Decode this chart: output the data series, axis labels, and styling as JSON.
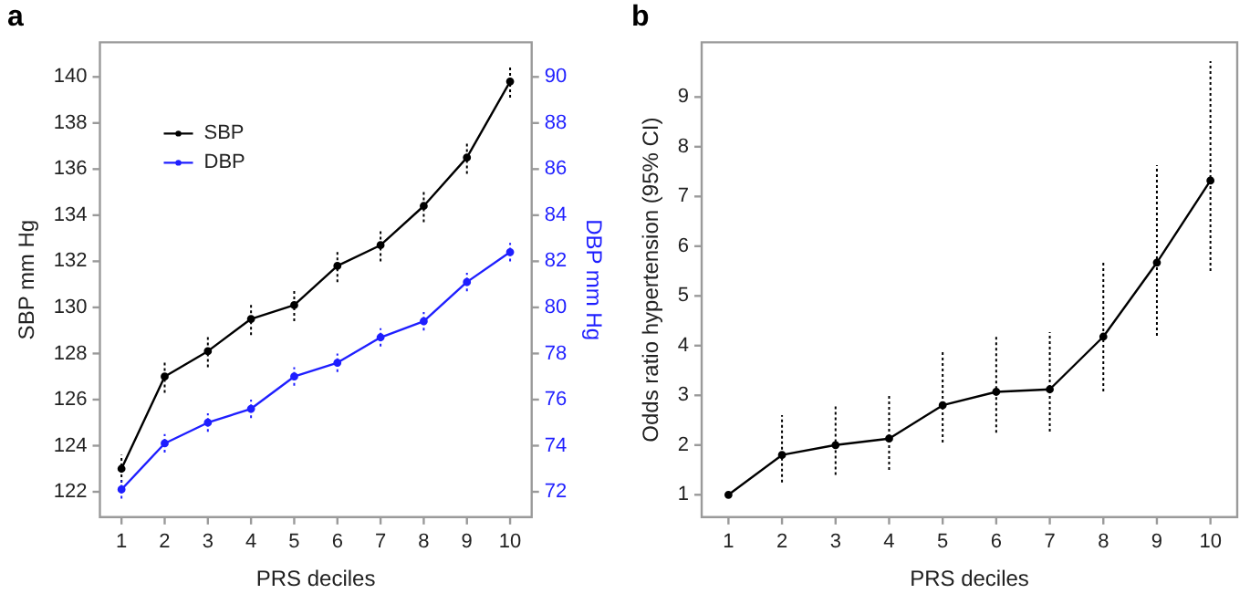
{
  "chart_data": [
    {
      "type": "line",
      "title": "a",
      "xlabel": "PRS deciles",
      "ylabel": "SBP mm Hg",
      "y2label": "DBP mm Hg",
      "categories": [
        "1",
        "2",
        "3",
        "4",
        "5",
        "6",
        "7",
        "8",
        "9",
        "10"
      ],
      "series": [
        {
          "name": "SBP",
          "color": "#000000",
          "values": [
            123.0,
            127.0,
            128.1,
            129.5,
            130.1,
            131.8,
            132.7,
            134.4,
            136.5,
            139.8
          ],
          "errors": [
            0.6,
            0.7,
            0.7,
            0.7,
            0.7,
            0.7,
            0.7,
            0.7,
            0.7,
            0.7
          ]
        },
        {
          "name": "DBP",
          "color": "#1f1fff",
          "axis": "y2",
          "values": [
            72.1,
            74.1,
            75.0,
            75.6,
            77.0,
            77.6,
            78.7,
            79.4,
            81.1,
            82.4
          ],
          "errors": [
            0.4,
            0.4,
            0.4,
            0.4,
            0.4,
            0.4,
            0.4,
            0.4,
            0.4,
            0.4
          ]
        }
      ],
      "ylim": [
        120.9,
        141.5
      ],
      "yticks": [
        122,
        124,
        126,
        128,
        130,
        132,
        134,
        136,
        138,
        140
      ],
      "y2lim": [
        70.9,
        91.5
      ],
      "y2ticks": [
        72,
        74,
        76,
        78,
        80,
        82,
        84,
        86,
        88,
        90
      ],
      "legend": "top left",
      "marker": "circle",
      "line_style": "solid",
      "grid": false
    },
    {
      "type": "line",
      "title": "b",
      "xlabel": "PRS deciles",
      "ylabel": "Odds ratio hypertension (95% CI)",
      "categories": [
        "1",
        "2",
        "3",
        "4",
        "5",
        "6",
        "7",
        "8",
        "9",
        "10"
      ],
      "series": [
        {
          "color": "#000000",
          "values": [
            1,
            1.8,
            2.0,
            2.13,
            2.8,
            3.07,
            3.12,
            4.18,
            5.67,
            7.32
          ],
          "errors": [
            null,
            [
              1.25,
              2.6
            ],
            [
              1.4,
              2.8
            ],
            [
              1.5,
              3.0
            ],
            [
              2.05,
              3.87
            ],
            [
              2.25,
              4.2
            ],
            [
              2.27,
              4.27
            ],
            [
              3.08,
              5.68
            ],
            [
              4.2,
              7.63
            ],
            [
              5.5,
              9.72
            ]
          ]
        }
      ],
      "ylim": [
        0.55,
        10.1
      ],
      "yticks": [
        1,
        2,
        3,
        4,
        5,
        6,
        7,
        8,
        9
      ],
      "marker": "circle",
      "line_style": "solid",
      "grid": false,
      "legend": false
    }
  ]
}
